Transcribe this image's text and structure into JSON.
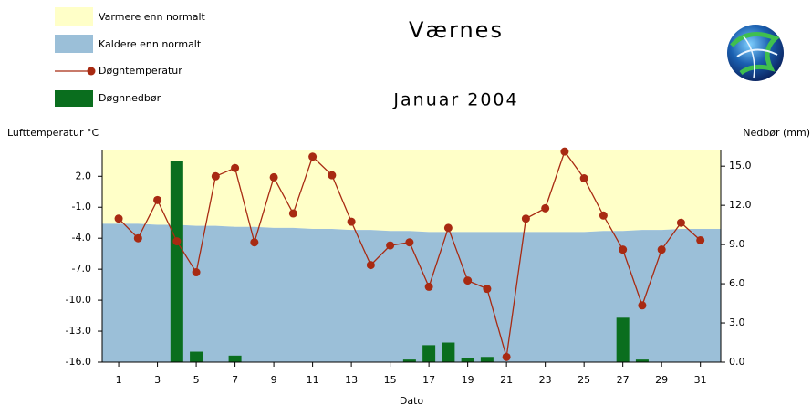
{
  "chart_data": {
    "type": "combo",
    "title": "Værnes",
    "subtitle": "Januar 2004",
    "ylabel": "Lufttemperatur °C",
    "y2label": "Nedbør (mm)",
    "xlabel": "Dato",
    "x": [
      1,
      2,
      3,
      4,
      5,
      6,
      7,
      8,
      9,
      10,
      11,
      12,
      13,
      14,
      15,
      16,
      17,
      18,
      19,
      20,
      21,
      22,
      23,
      24,
      25,
      26,
      27,
      28,
      29,
      30,
      31
    ],
    "xlim": [
      0.15,
      32.05
    ],
    "xticks": [
      1,
      3,
      5,
      7,
      9,
      11,
      13,
      15,
      17,
      19,
      21,
      23,
      25,
      27,
      29,
      31
    ],
    "ylim": [
      -16,
      4.5
    ],
    "yticks": [
      {
        "value": 2,
        "label": "2.0"
      },
      {
        "value": -1,
        "label": "-1.0"
      },
      {
        "value": -4,
        "label": "-4.0"
      },
      {
        "value": -7,
        "label": "-7.0"
      },
      {
        "value": -10,
        "label": "-10.0"
      },
      {
        "value": -13,
        "label": "-13.0"
      },
      {
        "value": -16,
        "label": "-16.0"
      }
    ],
    "y2lim": [
      0,
      16.2
    ],
    "y2ticks": [
      {
        "value": 15,
        "label": "15.0"
      },
      {
        "value": 12,
        "label": "12.0"
      },
      {
        "value": 9,
        "label": "9.0"
      },
      {
        "value": 6,
        "label": "6.0"
      },
      {
        "value": 3,
        "label": "3.0"
      },
      {
        "value": 0,
        "label": "0.0"
      }
    ],
    "normal": {
      "above": {
        "name": "Varmere enn normalt",
        "color": "#ffffc8"
      },
      "below": {
        "name": "Kaldere enn normalt",
        "color": "#9bbfd8"
      },
      "values": [
        -2.6,
        -2.6,
        -2.7,
        -2.7,
        -2.8,
        -2.8,
        -2.9,
        -2.9,
        -3.0,
        -3.0,
        -3.1,
        -3.1,
        -3.2,
        -3.2,
        -3.3,
        -3.3,
        -3.4,
        -3.4,
        -3.4,
        -3.4,
        -3.4,
        -3.4,
        -3.4,
        -3.4,
        -3.4,
        -3.3,
        -3.3,
        -3.2,
        -3.2,
        -3.1,
        -3.1
      ]
    },
    "series": [
      {
        "name": "Døgntemperatur",
        "color": "#a82a12",
        "kind": "line",
        "values": [
          -2.1,
          -4.0,
          -0.3,
          -4.3,
          -7.3,
          2.0,
          2.8,
          -4.4,
          1.9,
          -1.6,
          3.9,
          2.1,
          -2.4,
          -6.6,
          -4.7,
          -4.4,
          -8.7,
          -3.0,
          -8.1,
          -8.9,
          -15.5,
          -2.1,
          -1.1,
          4.4,
          1.8,
          -1.8,
          -5.1,
          -10.5,
          -5.1,
          -2.5,
          -4.2
        ]
      },
      {
        "name": "Døgnnedbør",
        "color": "#0a6e1e",
        "kind": "bar",
        "axis": "y2",
        "values": [
          0,
          0,
          0,
          15.4,
          0.8,
          0,
          0.5,
          0,
          0,
          0,
          0,
          0,
          0,
          0,
          0,
          0.2,
          1.3,
          1.5,
          0.3,
          0.4,
          0,
          0,
          0,
          0,
          0,
          0,
          3.4,
          0.2,
          0,
          0,
          0
        ]
      }
    ]
  }
}
